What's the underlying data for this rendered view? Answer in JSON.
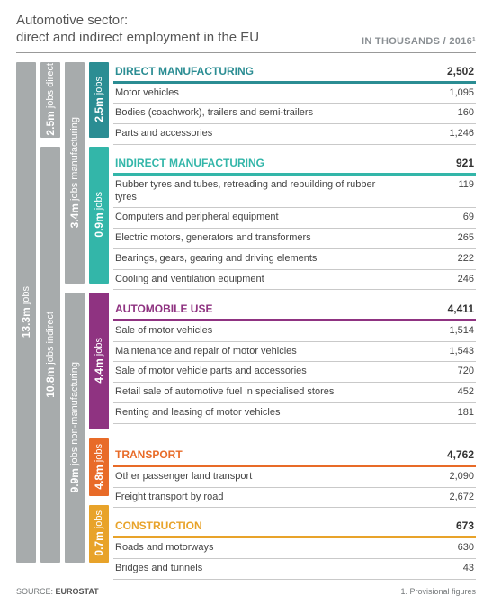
{
  "header": {
    "t1": "Automotive sector:",
    "t2": "direct and indirect employment in the EU",
    "right": "IN THOUSANDS / 2016¹"
  },
  "c": {
    "teal": "#2b8d93",
    "cyan": "#33b6a9",
    "purple": "#8f3381",
    "orange": "#e86b28",
    "amber": "#e8a32a",
    "grey": "#a7abac"
  },
  "bars": {
    "total": {
      "n": "13.3m",
      "t": "jobs"
    },
    "direct": {
      "n": "2.5m",
      "t": "jobs direct"
    },
    "indirect": {
      "n": "10.8m",
      "t": "jobs indirect"
    },
    "manu": {
      "n": "3.4m",
      "t": "jobs manufacturing"
    },
    "nonmanu": {
      "n": "9.9m",
      "t": "jobs non-manufacturing"
    },
    "dm": {
      "n": "2.5m",
      "t": "jobs"
    },
    "im": {
      "n": "0.9m",
      "t": "jobs"
    },
    "au": {
      "n": "4.4m",
      "t": "jobs"
    },
    "tr": {
      "n": "4.8m",
      "t": "jobs"
    },
    "co": {
      "n": "0.7m",
      "t": "jobs"
    }
  },
  "blocks": [
    {
      "k": "dm",
      "title": "DIRECT MANUFACTURING",
      "total": "2,502",
      "colorKey": "teal",
      "rows": [
        {
          "l": "Motor vehicles",
          "v": "1,095"
        },
        {
          "l": "Bodies (coachwork), trailers and semi-trailers",
          "v": "160"
        },
        {
          "l": "Parts and accessories",
          "v": "1,246"
        }
      ]
    },
    {
      "k": "im",
      "title": "INDIRECT MANUFACTURING",
      "total": "921",
      "colorKey": "cyan",
      "rows": [
        {
          "l": "Rubber tyres and tubes, retreading and rebuilding of rubber tyres",
          "v": "119"
        },
        {
          "l": "Computers and peripheral equipment",
          "v": "69"
        },
        {
          "l": "Electric motors, generators and transformers",
          "v": "265"
        },
        {
          "l": "Bearings, gears, gearing and driving elements",
          "v": "222"
        },
        {
          "l": "Cooling and ventilation equipment",
          "v": "246"
        }
      ]
    },
    {
      "k": "au",
      "title": "AUTOMOBILE USE",
      "total": "4,411",
      "colorKey": "purple",
      "rows": [
        {
          "l": "Sale of motor vehicles",
          "v": "1,514"
        },
        {
          "l": "Maintenance and repair of motor vehicles",
          "v": "1,543"
        },
        {
          "l": "Sale of motor vehicle parts and accessories",
          "v": "720"
        },
        {
          "l": "Retail sale of automotive fuel in specialised stores",
          "v": "452"
        },
        {
          "l": "Renting and leasing of motor vehicles",
          "v": "181"
        }
      ]
    },
    {
      "k": "tr",
      "title": "TRANSPORT",
      "total": "4,762",
      "colorKey": "orange",
      "rows": [
        {
          "l": "Other passenger land transport",
          "v": "2,090"
        },
        {
          "l": "Freight transport by road",
          "v": "2,672"
        }
      ]
    },
    {
      "k": "co",
      "title": "CONSTRUCTION",
      "total": "673",
      "colorKey": "amber",
      "rows": [
        {
          "l": "Roads and motorways",
          "v": "630"
        },
        {
          "l": "Bridges and tunnels",
          "v": "43"
        }
      ]
    }
  ],
  "heights": {
    "dm": 84,
    "im": 152,
    "au": 152,
    "tr": 64,
    "co": 64,
    "gap": 10
  },
  "footer": {
    "left_pre": "SOURCE: ",
    "left_bold": "EUROSTAT",
    "right": "1. Provisional figures"
  }
}
